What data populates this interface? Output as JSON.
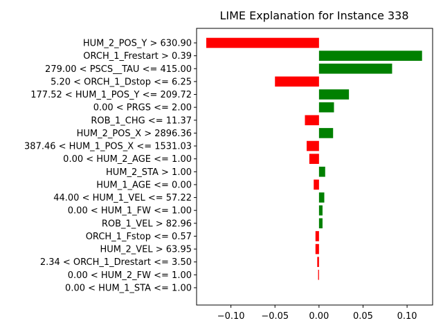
{
  "chart_data": {
    "type": "bar",
    "orientation": "horizontal",
    "title": "LIME Explanation for Instance 338",
    "xlabel": "",
    "ylabel": "",
    "xlim": [
      -0.139,
      0.129
    ],
    "xticks": [
      -0.1,
      -0.05,
      0.0,
      0.05,
      0.1
    ],
    "xtick_labels": [
      "−0.10",
      "−0.05",
      "0.00",
      "0.05",
      "0.10"
    ],
    "grid": false,
    "colors": {
      "positive": "#008000",
      "negative": "#ff0000"
    },
    "categories": [
      "HUM_2_POS_Y > 630.90",
      "ORCH_1_Frestart > 0.39",
      "279.00 < PSCS__TAU <= 415.00",
      "5.20 < ORCH_1_Dstop <= 6.25",
      "177.52 < HUM_1_POS_Y <= 209.72",
      "0.00 < PRGS <= 2.00",
      "ROB_1_CHG <= 11.37",
      "HUM_2_POS_X > 2896.36",
      "387.46 < HUM_1_POS_X <= 1531.03",
      "0.00 < HUM_2_AGE <= 1.00",
      "HUM_2_STA > 1.00",
      "HUM_1_AGE <= 0.00",
      "44.00 < HUM_1_VEL <= 57.22",
      "0.00 < HUM_1_FW <= 1.00",
      "ROB_1_VEL > 82.96",
      "ORCH_1_Fstop <= 0.57",
      "HUM_2_VEL > 63.95",
      "2.34 < ORCH_1_Drestart <= 3.50",
      "0.00 < HUM_2_FW <= 1.00",
      "0.00 < HUM_1_STA <= 1.00"
    ],
    "values": [
      -0.128,
      0.117,
      0.083,
      -0.05,
      0.034,
      0.017,
      -0.016,
      0.016,
      -0.014,
      -0.011,
      0.007,
      -0.006,
      0.006,
      0.004,
      0.004,
      -0.004,
      -0.004,
      -0.002,
      -0.001,
      0.0
    ]
  }
}
